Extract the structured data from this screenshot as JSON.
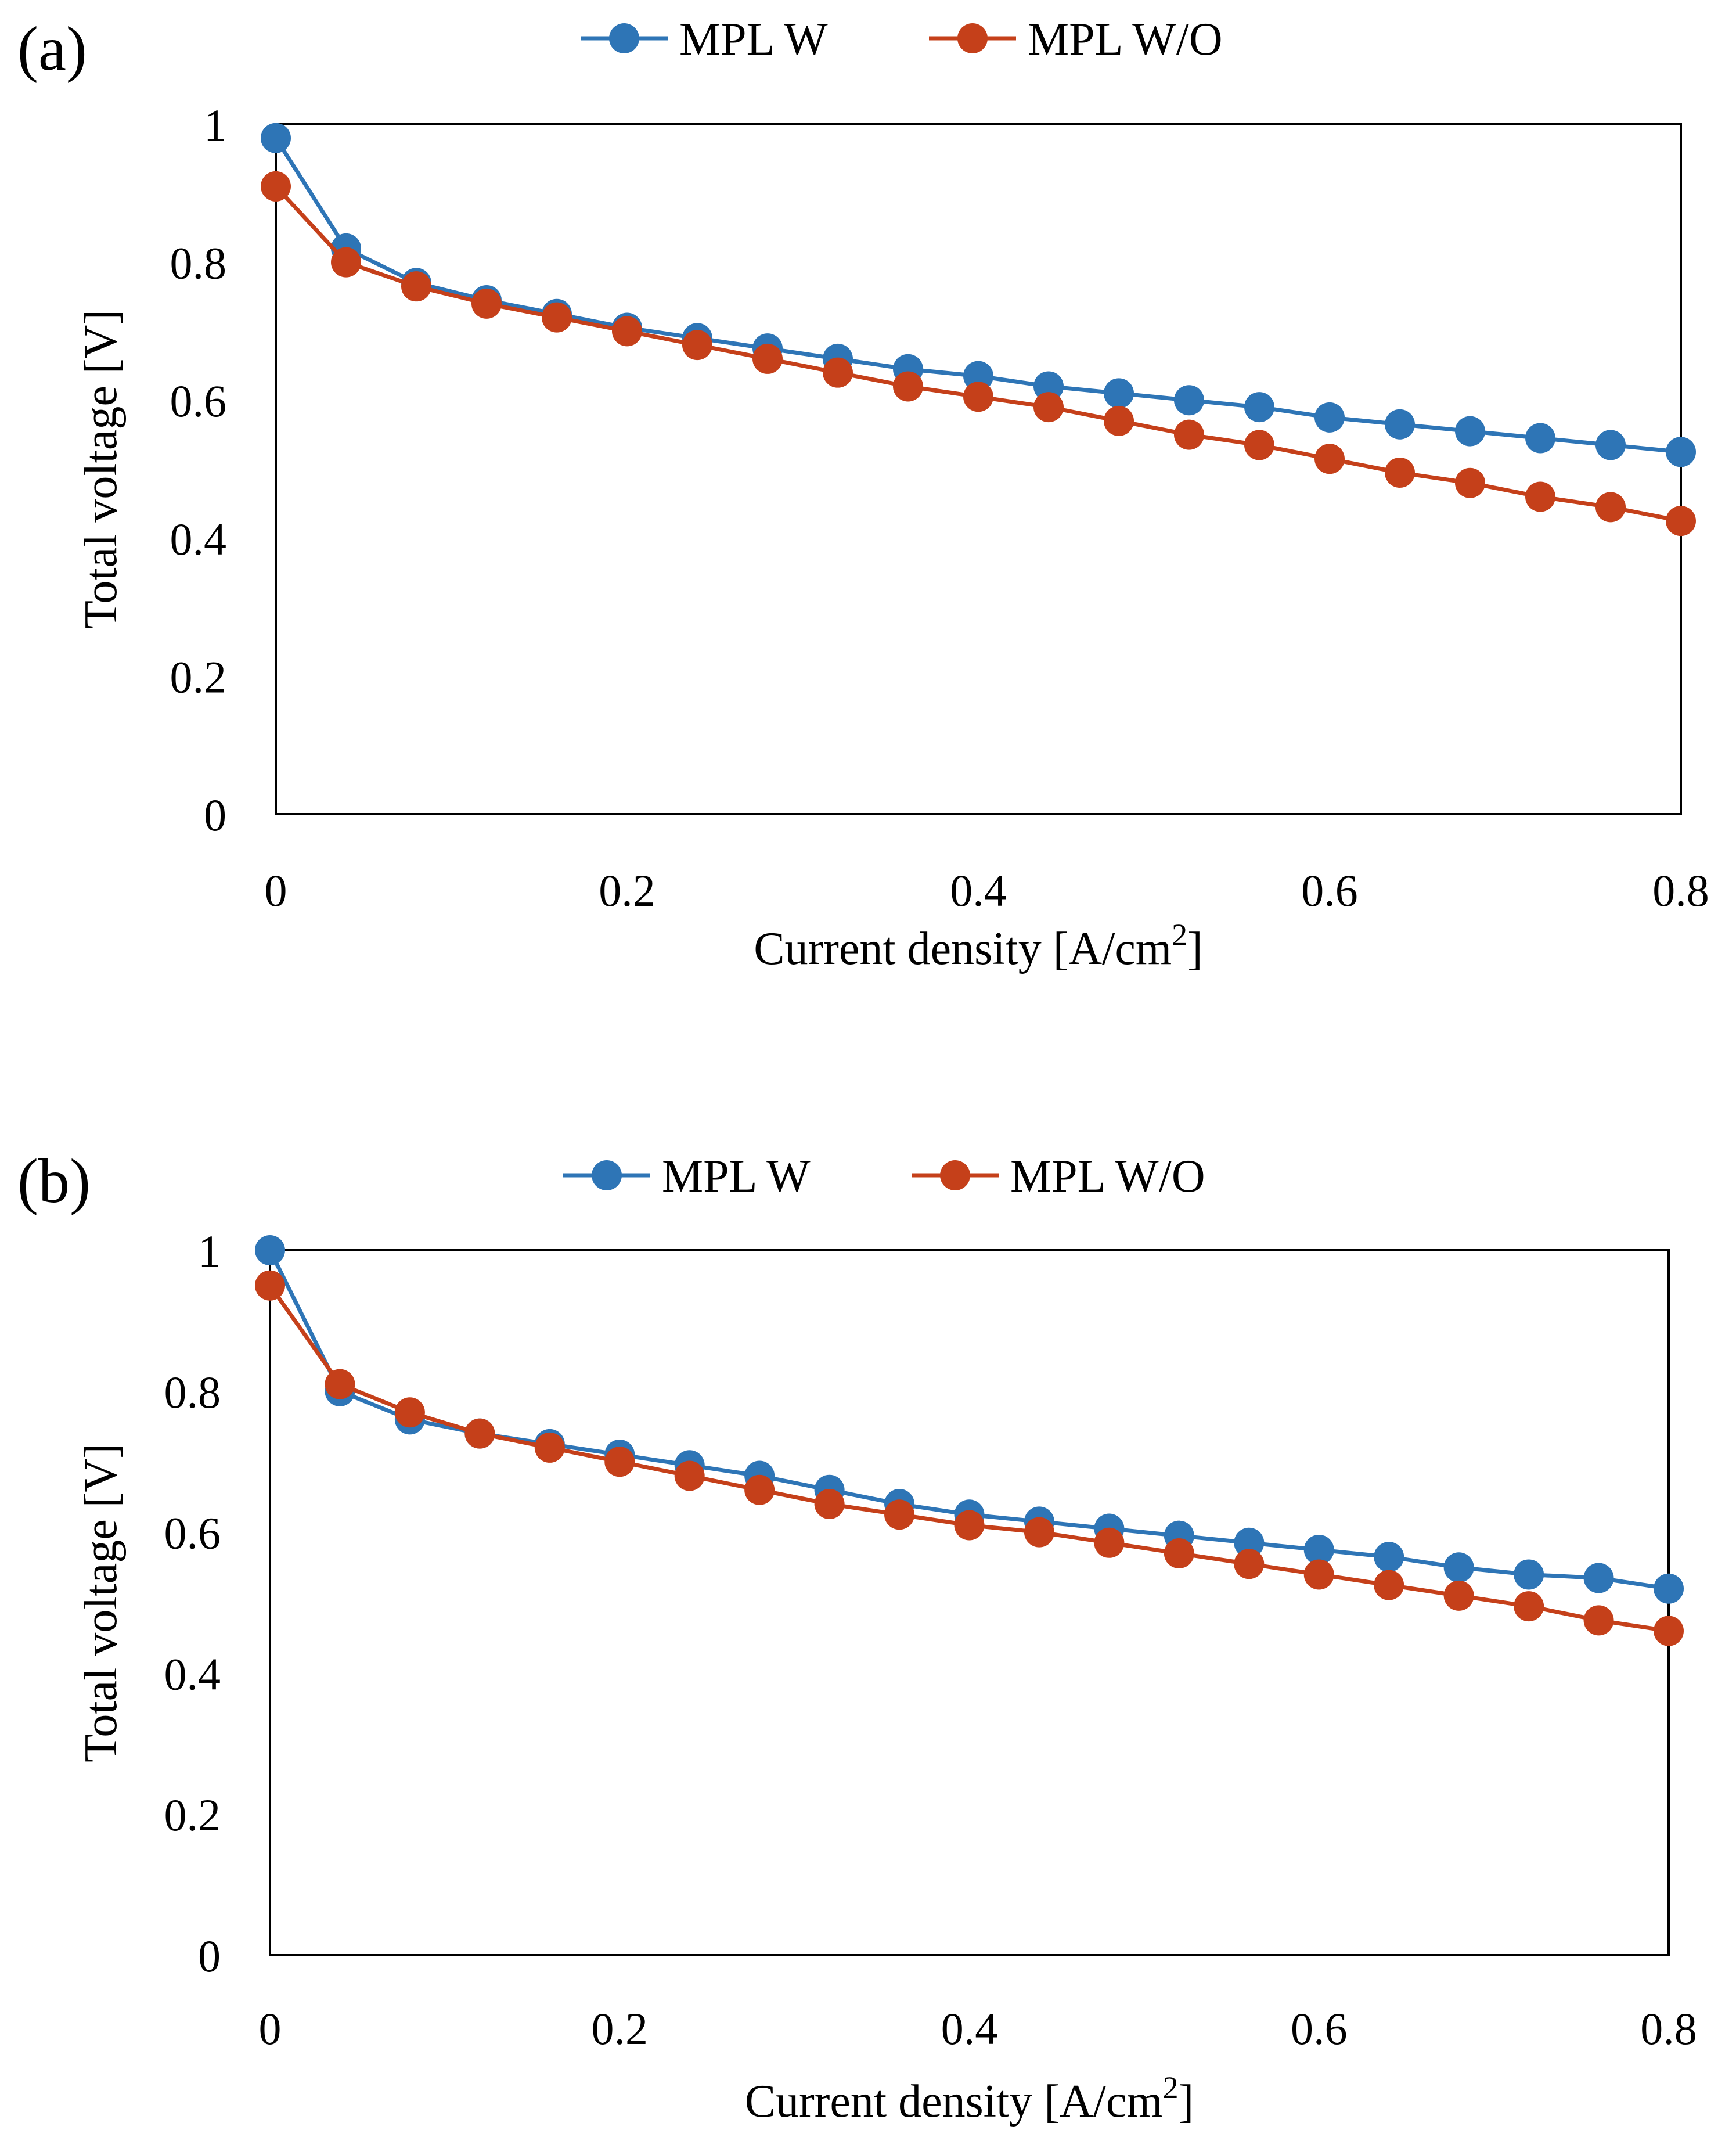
{
  "chart_data": [
    {
      "type": "line",
      "panel_label": "(a)",
      "title": "",
      "xlabel": "Current density [A/cm",
      "xlabel_sup": "2",
      "xlabel_end": "]",
      "ylabel": "Total voltage [V]",
      "xlim": [
        0,
        0.8
      ],
      "ylim": [
        0,
        1
      ],
      "xticks": [
        "0",
        "0.2",
        "0.4",
        "0.6",
        "0.8"
      ],
      "yticks": [
        "0",
        "0.2",
        "0.4",
        "0.6",
        "0.8",
        "1"
      ],
      "legend_position": "top-center",
      "x": [
        0,
        0.04,
        0.08,
        0.12,
        0.16,
        0.2,
        0.24,
        0.28,
        0.32,
        0.36,
        0.4,
        0.44,
        0.48,
        0.52,
        0.56,
        0.6,
        0.64,
        0.68,
        0.72,
        0.76,
        0.8
      ],
      "series": [
        {
          "name": "MPL W",
          "color": "#2E75B6",
          "values": [
            0.98,
            0.82,
            0.77,
            0.745,
            0.725,
            0.705,
            0.69,
            0.675,
            0.66,
            0.645,
            0.635,
            0.62,
            0.61,
            0.6,
            0.59,
            0.575,
            0.565,
            0.555,
            0.545,
            0.535,
            0.525
          ]
        },
        {
          "name": "MPL W/O",
          "color": "#C5401A",
          "values": [
            0.91,
            0.8,
            0.765,
            0.74,
            0.72,
            0.7,
            0.68,
            0.66,
            0.64,
            0.62,
            0.605,
            0.59,
            0.57,
            0.55,
            0.535,
            0.515,
            0.495,
            0.48,
            0.46,
            0.445,
            0.425
          ]
        }
      ]
    },
    {
      "type": "line",
      "panel_label": "(b)",
      "title": "",
      "xlabel": "Current density [A/cm",
      "xlabel_sup": "2",
      "xlabel_end": "]",
      "ylabel": "Total voltage [V]",
      "xlim": [
        0,
        0.8
      ],
      "ylim": [
        0,
        1
      ],
      "xticks": [
        "0",
        "0.2",
        "0.4",
        "0.6",
        "0.8"
      ],
      "yticks": [
        "0",
        "0.2",
        "0.4",
        "0.6",
        "0.8",
        "1"
      ],
      "legend_position": "top-center",
      "x": [
        0,
        0.04,
        0.08,
        0.12,
        0.16,
        0.2,
        0.24,
        0.28,
        0.32,
        0.36,
        0.4,
        0.44,
        0.48,
        0.52,
        0.56,
        0.6,
        0.64,
        0.68,
        0.72,
        0.76,
        0.8
      ],
      "series": [
        {
          "name": "MPL W",
          "color": "#2E75B6",
          "values": [
            1.0,
            0.8,
            0.76,
            0.74,
            0.725,
            0.71,
            0.695,
            0.68,
            0.66,
            0.64,
            0.625,
            0.615,
            0.605,
            0.595,
            0.585,
            0.575,
            0.565,
            0.55,
            0.54,
            0.535,
            0.52
          ]
        },
        {
          "name": "MPL W/O",
          "color": "#C5401A",
          "values": [
            0.95,
            0.81,
            0.77,
            0.74,
            0.72,
            0.7,
            0.68,
            0.66,
            0.64,
            0.625,
            0.61,
            0.6,
            0.585,
            0.57,
            0.555,
            0.54,
            0.525,
            0.51,
            0.495,
            0.475,
            0.46
          ]
        }
      ]
    }
  ]
}
